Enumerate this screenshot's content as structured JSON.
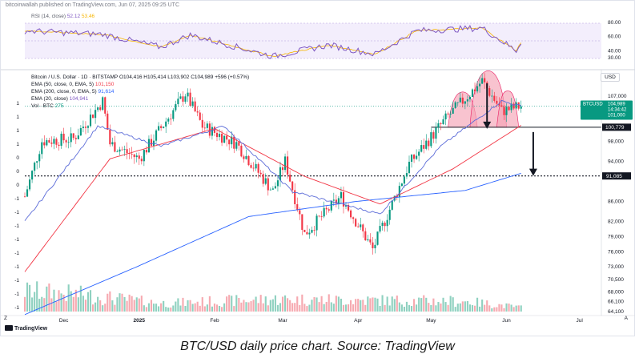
{
  "header": {
    "publisher": "bitcoinwallah published on TradingView.com, Jun 07, 2025 09:25 UTC"
  },
  "rsi": {
    "legend_name": "RSI (14, close)",
    "value_1": "52.12",
    "value_2": "53.46",
    "axis_labels": [
      "80.00",
      "60.00",
      "40.00",
      "30.00"
    ]
  },
  "legend": {
    "title": "Bitcoin / U.S. Dollar · 1D · BITSTAMP",
    "ohlc": "O104,416 H105,414 L103,902 C104,989 +596 (+0.57%)",
    "ema50_name": "EMA (50, close, 0, EMA, 5)",
    "ema50_value": "101,150",
    "ema200_name": "EMA (200, close, 0, EMA, 5)",
    "ema200_value": "91,614",
    "ema20_name": "EMA (20, close)",
    "ema20_value": "104,941",
    "vol_name": "Vol · BTC",
    "vol_value": "275"
  },
  "price_scale": {
    "currency": "USD",
    "labels": [
      "107,000",
      "98,000",
      "94,000",
      "86,000",
      "82,000",
      "79,000",
      "76,000",
      "73,000",
      "70,500",
      "68,000",
      "66,100",
      "64,100"
    ],
    "left_labels": [
      "1",
      "1",
      "1",
      "1",
      "0",
      "0",
      "0",
      "-1",
      "-1",
      "-1",
      "-1",
      "-1",
      "-1",
      "-1",
      "-1",
      "-1",
      "Z"
    ],
    "badge_symbol": "BTCUSD",
    "badge_price": "104,989",
    "badge_time": "14:34:42",
    "badge_ema": "101,000",
    "neckline_label": "100,779",
    "target_label": "91,085"
  },
  "time_axis": {
    "labels": [
      "Dec",
      "2025",
      "Feb",
      "Mar",
      "Apr",
      "May",
      "Jun",
      "Jul"
    ],
    "corner_left": "Z",
    "corner_right": "A"
  },
  "branding": {
    "logo_text": "TradingView"
  },
  "caption": "BTC/USD daily price chart. Source: TradingView",
  "colors": {
    "up": "#089981",
    "down": "#f23645",
    "ema20": "#2962ff",
    "ema50": "#f23645",
    "ema200": "#2962ff",
    "rsi": "#7e57c2",
    "rsi_ma": "#f7b500",
    "pattern_fill": "#f4a3b5"
  },
  "chart_data": {
    "type": "candlestick",
    "symbol": "BTCUSD",
    "interval": "1D",
    "y_range": [
      64100,
      110000
    ],
    "x_range": [
      "2024-11-15",
      "2025-07-10"
    ],
    "levels": {
      "neckline": 100779,
      "target": 91085,
      "last": 104989
    },
    "pattern": "head-and-shoulders (top)",
    "ohlc_anchor": [
      {
        "date": "2024-11-15",
        "close": 87000
      },
      {
        "date": "2024-11-22",
        "close": 98000
      },
      {
        "date": "2024-12-05",
        "close": 98500
      },
      {
        "date": "2024-12-17",
        "close": 106000
      },
      {
        "date": "2024-12-20",
        "close": 97500
      },
      {
        "date": "2025-01-01",
        "close": 94500
      },
      {
        "date": "2025-01-20",
        "close": 107500
      },
      {
        "date": "2025-01-27",
        "close": 101000
      },
      {
        "date": "2025-02-10",
        "close": 97500
      },
      {
        "date": "2025-02-25",
        "close": 88000
      },
      {
        "date": "2025-03-02",
        "close": 94000
      },
      {
        "date": "2025-03-10",
        "close": 79500
      },
      {
        "date": "2025-03-25",
        "close": 87000
      },
      {
        "date": "2025-04-07",
        "close": 76500
      },
      {
        "date": "2025-04-22",
        "close": 93500
      },
      {
        "date": "2025-05-08",
        "close": 103000
      },
      {
        "date": "2025-05-22",
        "close": 110000
      },
      {
        "date": "2025-05-30",
        "close": 104000
      },
      {
        "date": "2025-06-07",
        "close": 104989
      }
    ],
    "ema20_anchor": [
      {
        "date": "2024-11-15",
        "value": 82000
      },
      {
        "date": "2024-12-15",
        "value": 101000
      },
      {
        "date": "2025-01-10",
        "value": 97000
      },
      {
        "date": "2025-02-05",
        "value": 101000
      },
      {
        "date": "2025-03-05",
        "value": 88000
      },
      {
        "date": "2025-04-10",
        "value": 83500
      },
      {
        "date": "2025-05-05",
        "value": 97000
      },
      {
        "date": "2025-05-30",
        "value": 106000
      },
      {
        "date": "2025-06-07",
        "value": 104941
      }
    ],
    "ema50_anchor": [
      {
        "date": "2024-11-15",
        "value": 72000
      },
      {
        "date": "2024-12-20",
        "value": 94500
      },
      {
        "date": "2025-02-01",
        "value": 100500
      },
      {
        "date": "2025-03-10",
        "value": 91000
      },
      {
        "date": "2025-04-10",
        "value": 85500
      },
      {
        "date": "2025-05-10",
        "value": 92500
      },
      {
        "date": "2025-06-07",
        "value": 101150
      }
    ],
    "ema200_anchor": [
      {
        "date": "2024-11-15",
        "value": 63500
      },
      {
        "date": "2024-12-31",
        "value": 73000
      },
      {
        "date": "2025-02-15",
        "value": 83000
      },
      {
        "date": "2025-03-31",
        "value": 86000
      },
      {
        "date": "2025-05-15",
        "value": 88200
      },
      {
        "date": "2025-06-07",
        "value": 91614
      }
    ],
    "rsi_anchor": [
      {
        "date": "2024-11-15",
        "value": 68
      },
      {
        "date": "2024-12-17",
        "value": 63
      },
      {
        "date": "2025-01-10",
        "value": 45
      },
      {
        "date": "2025-01-22",
        "value": 62
      },
      {
        "date": "2025-02-25",
        "value": 32
      },
      {
        "date": "2025-03-20",
        "value": 48
      },
      {
        "date": "2025-04-08",
        "value": 35
      },
      {
        "date": "2025-04-25",
        "value": 68
      },
      {
        "date": "2025-05-22",
        "value": 72
      },
      {
        "date": "2025-06-05",
        "value": 40
      },
      {
        "date": "2025-06-07",
        "value": 52
      }
    ],
    "volume_anchor": [
      {
        "date": "2024-11-15",
        "value": 1.0
      },
      {
        "date": "2024-12-05",
        "value": 0.85
      },
      {
        "date": "2025-01-10",
        "value": 0.4
      },
      {
        "date": "2025-02-25",
        "value": 0.6
      },
      {
        "date": "2025-04-07",
        "value": 0.55
      },
      {
        "date": "2025-05-15",
        "value": 0.5
      },
      {
        "date": "2025-06-07",
        "value": 0.2
      }
    ]
  }
}
